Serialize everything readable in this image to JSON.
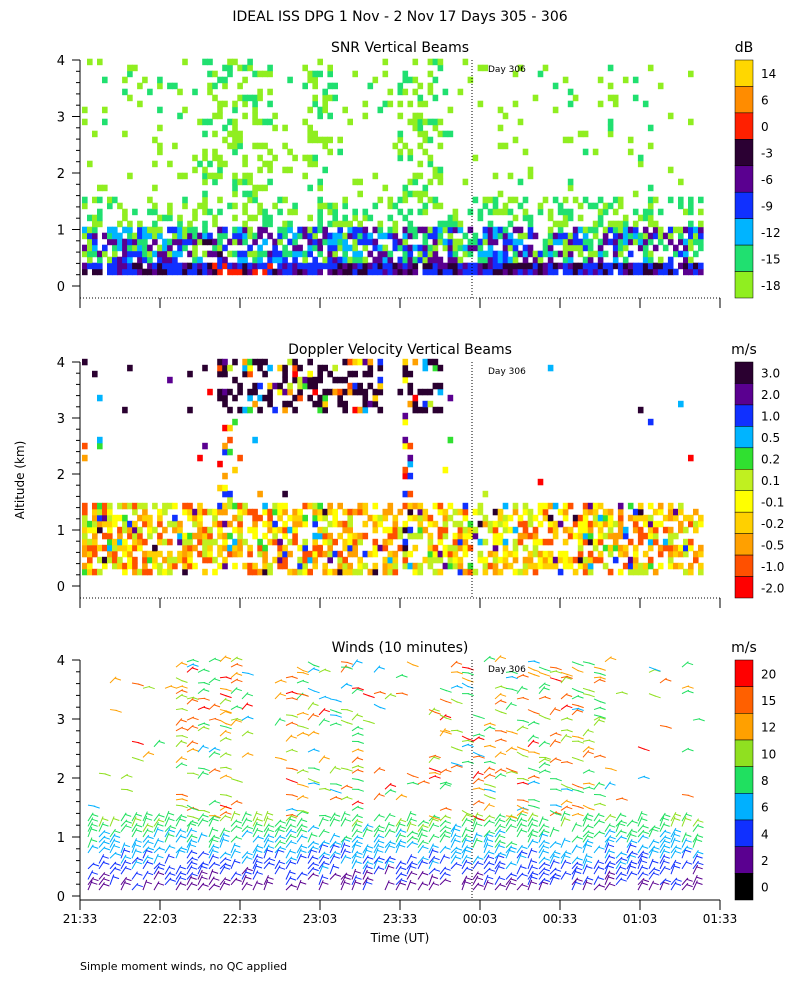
{
  "header": {
    "title": "IDEAL ISS DPG   1 Nov -  2 Nov 17 Days 305 - 306",
    "ylabel": "Altitude (km)",
    "xlabel": "Time (UT)",
    "footnote": "Simple moment winds, no QC applied",
    "day_marker": "Day 306"
  },
  "chart_data": [
    {
      "type": "heatmap",
      "title": "SNR Vertical Beams",
      "units": "dB",
      "ylim": [
        0,
        4
      ],
      "yticks": [
        "0",
        "1",
        "2",
        "3",
        "4"
      ],
      "colorbar_labels": [
        "14",
        "6",
        "0",
        "-3",
        "-6",
        "-9",
        "-12",
        "-15",
        "-18"
      ],
      "colors": [
        "#ffd700",
        "#ff8c00",
        "#ff2000",
        "#2b0033",
        "#5a0090",
        "#1030ff",
        "#00b4ff",
        "#20e070",
        "#90ee20"
      ]
    },
    {
      "type": "heatmap",
      "title": "Doppler Velocity Vertical Beams",
      "units": "m/s",
      "ylim": [
        0,
        4
      ],
      "yticks": [
        "0",
        "1",
        "2",
        "3",
        "4"
      ],
      "colorbar_labels": [
        "3.0",
        "2.0",
        "1.0",
        "0.5",
        "0.2",
        "0.1",
        "-0.1",
        "-0.2",
        "-0.5",
        "-1.0",
        "-2.0"
      ],
      "colors": [
        "#2a0030",
        "#5a0090",
        "#1030ff",
        "#00b4ff",
        "#30e030",
        "#c0f020",
        "#ffff00",
        "#ffd000",
        "#ffa000",
        "#ff5000",
        "#ff0000"
      ]
    },
    {
      "type": "wind barbs",
      "title": "Winds (10 minutes)",
      "units": "m/s",
      "ylim": [
        0,
        4
      ],
      "yticks": [
        "0",
        "1",
        "2",
        "3",
        "4"
      ],
      "xticks": [
        "21:33",
        "22:03",
        "22:33",
        "23:03",
        "23:33",
        "00:03",
        "00:33",
        "01:03",
        "01:33"
      ],
      "colorbar_labels": [
        "20",
        "15",
        "12",
        "10",
        "8",
        "6",
        "4",
        "2",
        "0"
      ],
      "colors": [
        "#ff0000",
        "#ff6000",
        "#ffa000",
        "#90e020",
        "#20e060",
        "#00b0ff",
        "#1030ff",
        "#5a0090",
        "#000000"
      ]
    }
  ]
}
